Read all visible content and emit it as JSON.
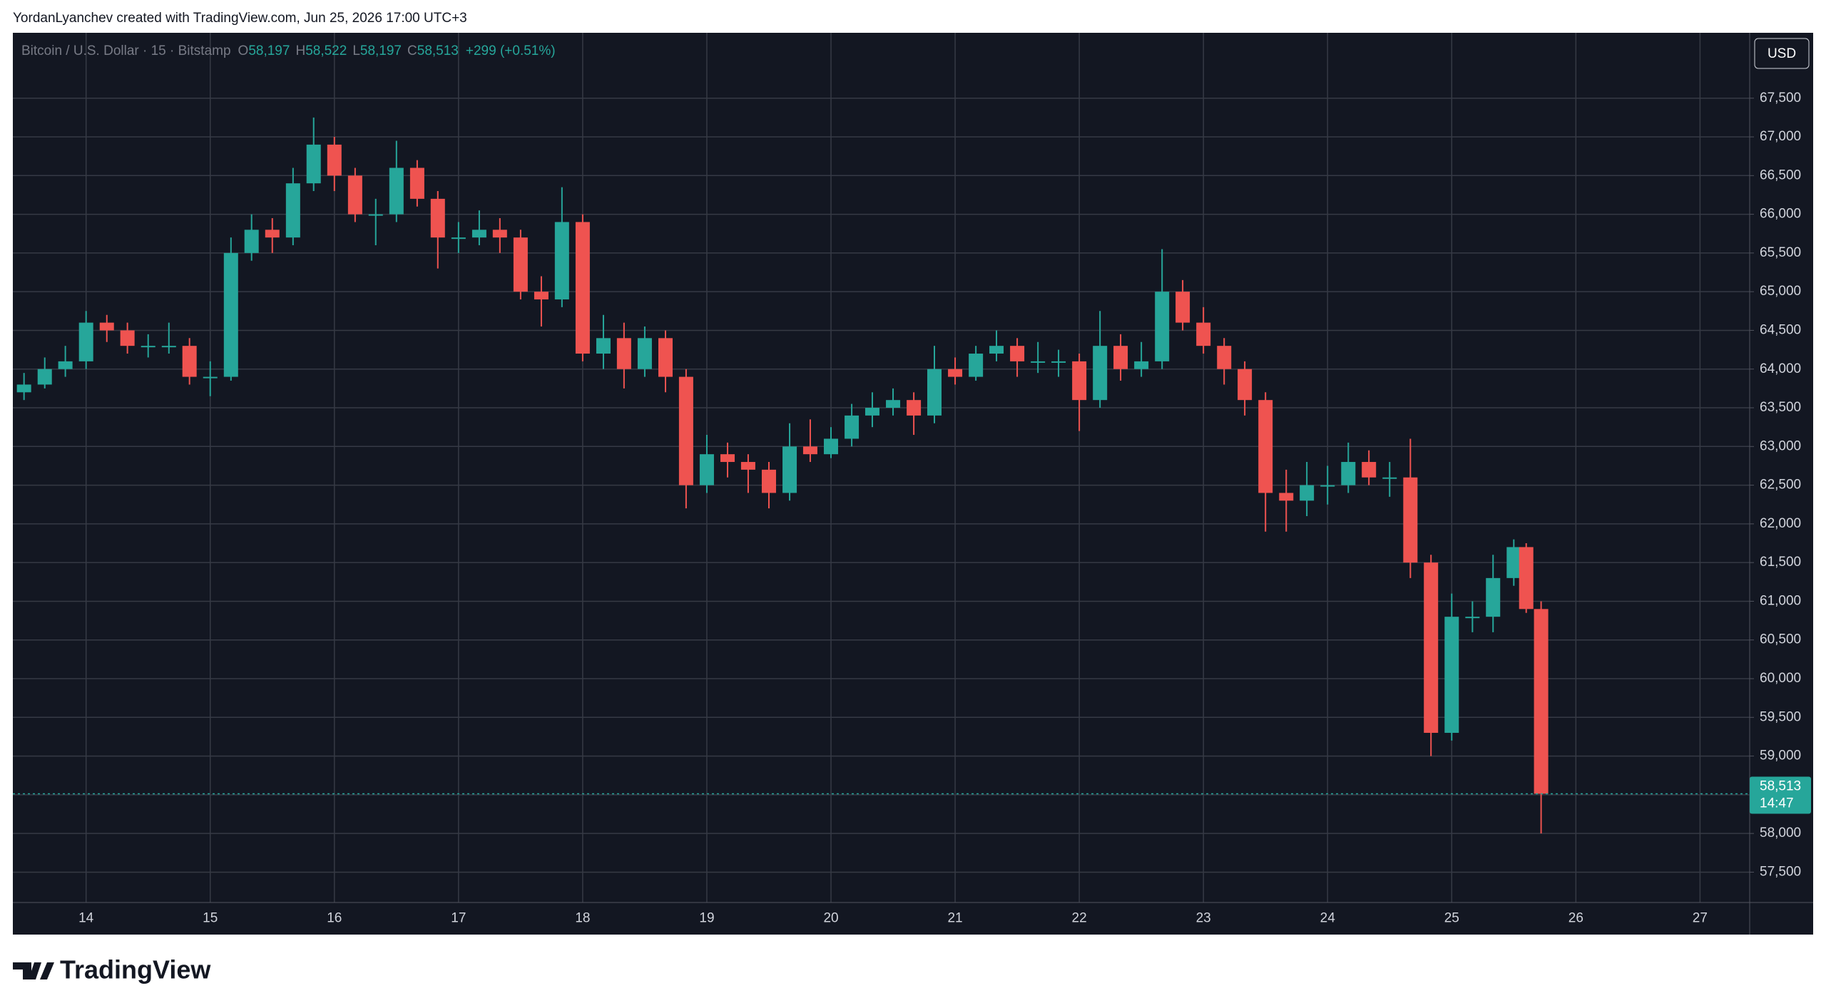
{
  "header": {
    "credit": "YordanLyanchev created with TradingView.com, Jun 25, 2026 17:00 UTC+3"
  },
  "legend": {
    "symbol": "Bitcoin / U.S. Dollar · 15 · Bitstamp",
    "ohlc": [
      {
        "key": "O",
        "value": "58,197"
      },
      {
        "key": "H",
        "value": "58,522"
      },
      {
        "key": "L",
        "value": "58,197"
      },
      {
        "key": "C",
        "value": "58,513"
      }
    ],
    "change": "+299 (+0.51%)"
  },
  "currency_button": "USD",
  "logo": "TradingView",
  "chart_data": {
    "type": "candlestick",
    "up_color": "#26a69a",
    "down_color": "#ef5350",
    "grid": true,
    "x": [
      13.5,
      13.667,
      13.833,
      14.0,
      14.167,
      14.333,
      14.5,
      14.667,
      14.833,
      15.0,
      15.167,
      15.333,
      15.5,
      15.667,
      15.833,
      16.0,
      16.167,
      16.333,
      16.5,
      16.667,
      16.833,
      17.0,
      17.167,
      17.333,
      17.5,
      17.667,
      17.833,
      18.0,
      18.167,
      18.333,
      18.5,
      18.667,
      18.833,
      19.0,
      19.167,
      19.333,
      19.5,
      19.667,
      19.833,
      20.0,
      20.167,
      20.333,
      20.5,
      20.667,
      20.833,
      21.0,
      21.167,
      21.333,
      21.5,
      21.667,
      21.833,
      22.0,
      22.167,
      22.333,
      22.5,
      22.667,
      22.833,
      23.0,
      23.167,
      23.333,
      23.5,
      23.667,
      23.833,
      24.0,
      24.167,
      24.333,
      24.5,
      24.667,
      24.833,
      25.0,
      25.167,
      25.333,
      25.5,
      25.6,
      25.72
    ],
    "open": [
      63700,
      63800,
      64000,
      64100,
      64600,
      64500,
      64300,
      64300,
      64300,
      63900,
      63900,
      65500,
      65800,
      65700,
      66400,
      66900,
      66500,
      66000,
      66000,
      66600,
      66200,
      65700,
      65700,
      65800,
      65700,
      65000,
      64900,
      65900,
      64200,
      64400,
      64000,
      64400,
      63900,
      62500,
      62900,
      62800,
      62700,
      62400,
      63000,
      62900,
      63100,
      63400,
      63500,
      63600,
      63400,
      64000,
      63900,
      64200,
      64300,
      64100,
      64100,
      64100,
      63600,
      64300,
      64000,
      64100,
      65000,
      64600,
      64300,
      64000,
      63600,
      62400,
      62300,
      62500,
      62500,
      62800,
      62600,
      62600,
      61500,
      59300,
      60800,
      60800,
      61300,
      61700,
      60900
    ],
    "high": [
      63950,
      64150,
      64300,
      64750,
      64700,
      64600,
      64450,
      64600,
      64400,
      64100,
      65700,
      66000,
      65950,
      66600,
      67250,
      67000,
      66600,
      66200,
      66950,
      66700,
      66300,
      65900,
      66050,
      65950,
      65800,
      65200,
      66350,
      66000,
      64700,
      64600,
      64550,
      64500,
      64000,
      63150,
      63050,
      62900,
      62800,
      63300,
      63350,
      63250,
      63550,
      63700,
      63750,
      63700,
      64300,
      64150,
      64300,
      64500,
      64400,
      64350,
      64250,
      64200,
      64750,
      64450,
      64350,
      65550,
      65150,
      64800,
      64400,
      64100,
      63700,
      62700,
      62800,
      62750,
      63050,
      62950,
      62800,
      63100,
      61600,
      61100,
      61000,
      61600,
      61800,
      61750,
      61000
    ],
    "low": [
      63600,
      63750,
      63900,
      64000,
      64350,
      64200,
      64150,
      64200,
      63800,
      63650,
      63850,
      65400,
      65500,
      65600,
      66300,
      66300,
      65900,
      65600,
      65900,
      66100,
      65300,
      65500,
      65600,
      65500,
      64900,
      64550,
      64800,
      64100,
      64000,
      63750,
      63900,
      63700,
      62200,
      62400,
      62600,
      62400,
      62200,
      62300,
      62800,
      62850,
      63000,
      63250,
      63400,
      63150,
      63300,
      63800,
      63850,
      64100,
      63900,
      63950,
      63900,
      63200,
      63500,
      63850,
      63900,
      64000,
      64500,
      64200,
      63800,
      63400,
      61900,
      61900,
      62100,
      62250,
      62400,
      62500,
      62350,
      61300,
      59000,
      59200,
      60600,
      60600,
      61200,
      60850,
      58000
    ],
    "close": [
      63800,
      64000,
      64100,
      64600,
      64500,
      64300,
      64300,
      64300,
      63900,
      63900,
      65500,
      65800,
      65700,
      66400,
      66900,
      66500,
      66000,
      66000,
      66600,
      66200,
      65700,
      65700,
      65800,
      65700,
      65000,
      64900,
      65900,
      64200,
      64400,
      64000,
      64400,
      63900,
      62500,
      62900,
      62800,
      62700,
      62400,
      63000,
      62900,
      63100,
      63400,
      63500,
      63600,
      63400,
      64000,
      63900,
      64200,
      64300,
      64100,
      64100,
      64100,
      63600,
      64300,
      64000,
      64100,
      65000,
      64600,
      64300,
      64000,
      63600,
      62400,
      62300,
      62500,
      62500,
      62800,
      62600,
      62600,
      61500,
      59300,
      60800,
      60800,
      61300,
      61700,
      60900,
      58513
    ],
    "xlim": [
      13.41,
      27.4
    ],
    "xticks": [
      14,
      15,
      16,
      17,
      18,
      19,
      20,
      21,
      22,
      23,
      24,
      25,
      26,
      27
    ],
    "ylim": [
      57108,
      68345
    ],
    "yticks": [
      {
        "value": 57500,
        "label": "57,500"
      },
      {
        "value": 58000,
        "label": "58,000"
      },
      {
        "value": 58500,
        "label": "58,500"
      },
      {
        "value": 59000,
        "label": "59,000"
      },
      {
        "value": 59500,
        "label": "59,500"
      },
      {
        "value": 60000,
        "label": "60,000"
      },
      {
        "value": 60500,
        "label": "60,500"
      },
      {
        "value": 61000,
        "label": "61,000"
      },
      {
        "value": 61500,
        "label": "61,500"
      },
      {
        "value": 62000,
        "label": "62,000"
      },
      {
        "value": 62500,
        "label": "62,500"
      },
      {
        "value": 63000,
        "label": "63,000"
      },
      {
        "value": 63500,
        "label": "63,500"
      },
      {
        "value": 64000,
        "label": "64,000"
      },
      {
        "value": 64500,
        "label": "64,500"
      },
      {
        "value": 65000,
        "label": "65,000"
      },
      {
        "value": 65500,
        "label": "65,500"
      },
      {
        "value": 66000,
        "label": "66,000"
      },
      {
        "value": 66500,
        "label": "66,500"
      },
      {
        "value": 67000,
        "label": "67,000"
      },
      {
        "value": 67500,
        "label": "67,500"
      }
    ],
    "last_price": {
      "value": 58513,
      "label": "58,513",
      "countdown": "14:47"
    }
  }
}
